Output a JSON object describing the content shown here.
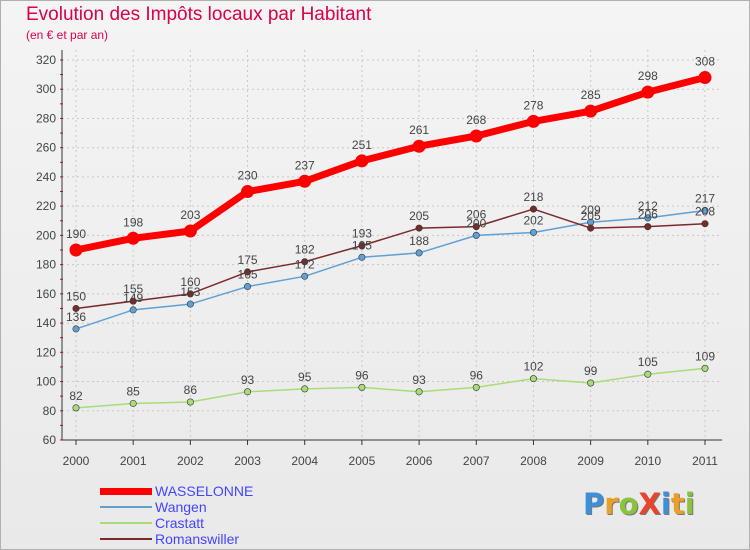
{
  "title": "Evolution des Impôts locaux par Habitant",
  "subtitle": "(en € et par an)",
  "logo": {
    "text": "ProXiti",
    "letters": [
      {
        "ch": "P",
        "color": "#3c8fd8"
      },
      {
        "ch": "r",
        "color": "#e9a02a"
      },
      {
        "ch": "o",
        "color": "#8ac43f"
      },
      {
        "ch": "X",
        "color": "#e8442e"
      },
      {
        "ch": "i",
        "color": "#3c8fd8"
      },
      {
        "ch": "t",
        "color": "#e9a02a"
      },
      {
        "ch": "i",
        "color": "#8ac43f"
      }
    ]
  },
  "chart_data": {
    "type": "line",
    "title": "Evolution des Impôts locaux par Habitant",
    "subtitle": "(en € et par an)",
    "xlabel": "",
    "ylabel": "",
    "ylim": [
      60,
      320
    ],
    "yticks": [
      60,
      80,
      100,
      120,
      140,
      160,
      180,
      200,
      220,
      240,
      260,
      280,
      300,
      320
    ],
    "grid": "horizontal dashed",
    "legend_position": "bottom-left",
    "categories": [
      "2000",
      "2001",
      "2002",
      "2003",
      "2004",
      "2005",
      "2006",
      "2007",
      "2008",
      "2009",
      "2010",
      "2011"
    ],
    "series": [
      {
        "name": "WASSELONNE",
        "color": "#ff0000",
        "label_color": "#4444ff",
        "values": [
          190,
          198,
          203,
          230,
          237,
          251,
          261,
          268,
          278,
          285,
          298,
          308
        ]
      },
      {
        "name": "Wangen",
        "color": "#5fa0d6",
        "label_color": "#4444ff",
        "values": [
          136,
          149,
          153,
          165,
          172,
          185,
          188,
          200,
          202,
          209,
          212,
          217
        ]
      },
      {
        "name": "Crastatt",
        "color": "#a8dc78",
        "label_color": "#4444ff",
        "values": [
          82,
          85,
          86,
          93,
          95,
          96,
          93,
          96,
          102,
          99,
          105,
          109
        ]
      },
      {
        "name": "Romanswiller",
        "color": "#7a2a2a",
        "label_color": "#4444ff",
        "values": [
          150,
          155,
          160,
          175,
          182,
          193,
          205,
          206,
          218,
          205,
          206,
          208
        ]
      }
    ]
  }
}
